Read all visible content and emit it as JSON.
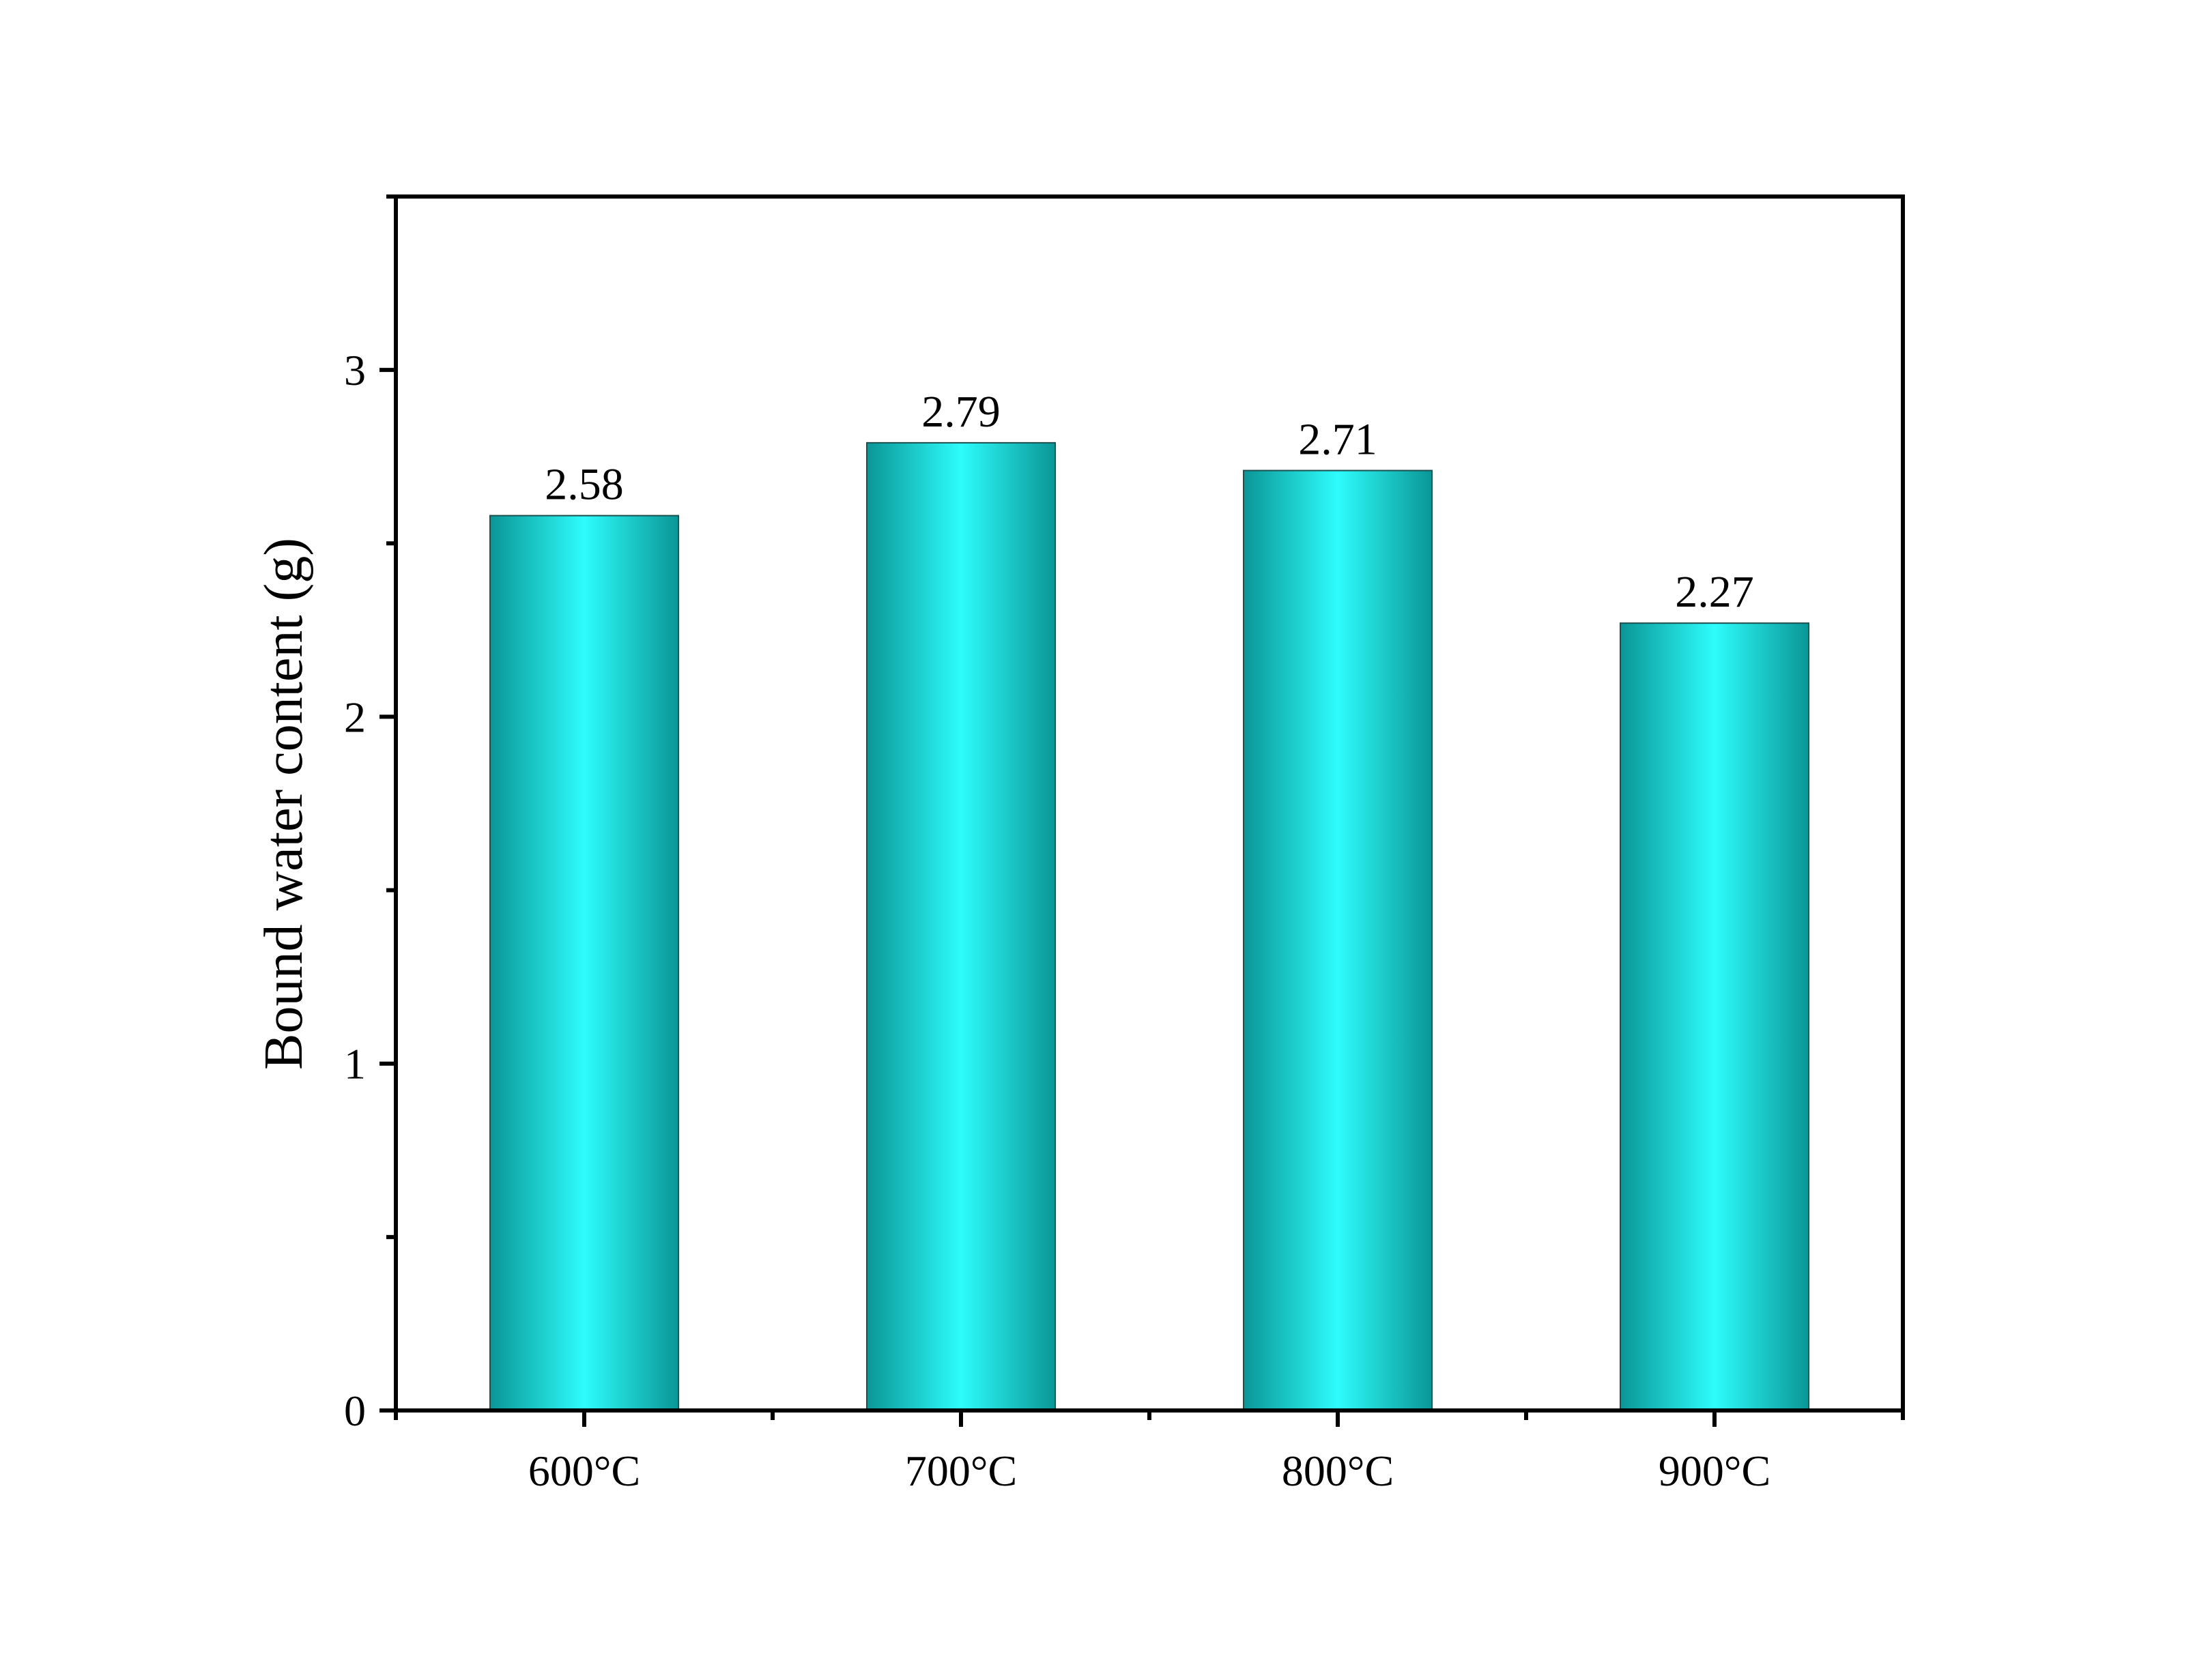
{
  "chart_data": {
    "type": "bar",
    "categories": [
      "600°C",
      "700°C",
      "800°C",
      "900°C"
    ],
    "values": [
      2.58,
      2.79,
      2.71,
      2.27
    ],
    "data_labels": [
      "2.58",
      "2.79",
      "2.71",
      "2.27"
    ],
    "title": "",
    "xlabel": "",
    "ylabel": "Bound water content (g)",
    "ylim": [
      0,
      3.5
    ],
    "yticks": [
      0,
      1,
      2,
      3
    ],
    "ytick_labels": [
      "0",
      "1",
      "2",
      "3"
    ],
    "grid": false,
    "legend": "none",
    "bar_color_edge": "#0a9696",
    "bar_color_center": "#2efcfc"
  }
}
